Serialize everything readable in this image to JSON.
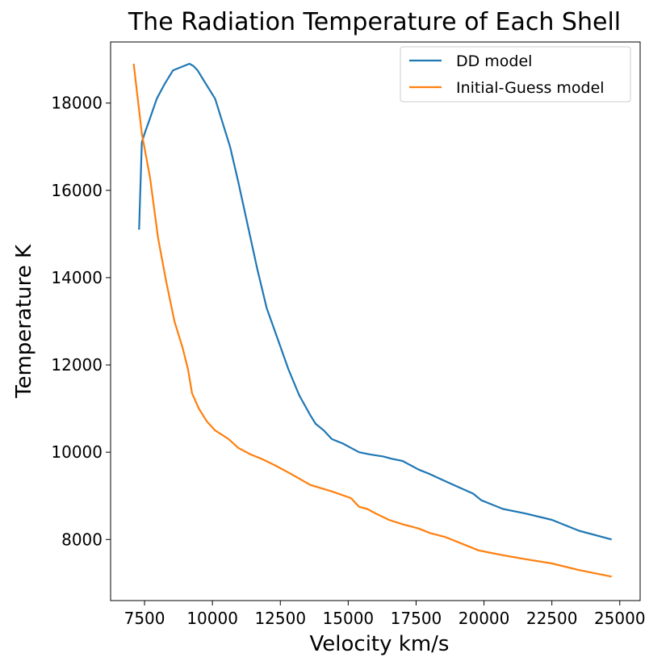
{
  "chart_data": {
    "type": "line",
    "title": "The Radiation Temperature of Each Shell",
    "xlabel": "Velocity km/s",
    "ylabel": "Temperature K",
    "xlim": [
      6250,
      25750
    ],
    "ylim": [
      6600,
      19400
    ],
    "xticks": [
      7500,
      10000,
      12500,
      15000,
      17500,
      20000,
      22500,
      25000
    ],
    "yticks": [
      8000,
      10000,
      12000,
      14000,
      16000,
      18000
    ],
    "grid": false,
    "legend_position": "top-right",
    "series": [
      {
        "name": "DD model",
        "color": "#1f77b4",
        "x": [
          7300,
          7400,
          7500,
          7700,
          7950,
          8250,
          8550,
          9150,
          9300,
          9450,
          9650,
          9850,
          10100,
          10350,
          10650,
          10950,
          11300,
          11650,
          12000,
          12400,
          12800,
          13200,
          13600,
          13800,
          14100,
          14400,
          14800,
          15100,
          15400,
          15800,
          16300,
          16600,
          17000,
          17300,
          17600,
          18000,
          18700,
          19600,
          19900,
          20300,
          20700,
          21500,
          22500,
          23500,
          24700
        ],
        "values": [
          15100,
          17100,
          17300,
          17650,
          18100,
          18450,
          18750,
          18900,
          18850,
          18750,
          18550,
          18350,
          18100,
          17600,
          17000,
          16200,
          15200,
          14200,
          13300,
          12600,
          11900,
          11300,
          10850,
          10650,
          10500,
          10300,
          10200,
          10100,
          10000,
          9950,
          9900,
          9850,
          9800,
          9700,
          9600,
          9500,
          9300,
          9050,
          8900,
          8800,
          8700,
          8600,
          8450,
          8200,
          8000
        ]
      },
      {
        "name": "Initial-Guess model",
        "color": "#ff7f0e",
        "x": [
          7100,
          7400,
          7700,
          8000,
          8300,
          8600,
          8900,
          9100,
          9250,
          9500,
          9800,
          10100,
          10350,
          10600,
          10950,
          11400,
          11800,
          12300,
          12900,
          13600,
          14400,
          15100,
          15400,
          15700,
          16000,
          16500,
          17000,
          17600,
          18000,
          18600,
          19200,
          19800,
          20200,
          20600,
          21500,
          22500,
          23500,
          24700
        ],
        "values": [
          18900,
          17300,
          16300,
          14900,
          13900,
          13000,
          12400,
          11900,
          11350,
          11000,
          10700,
          10500,
          10400,
          10300,
          10100,
          9950,
          9850,
          9700,
          9500,
          9250,
          9100,
          8950,
          8750,
          8700,
          8600,
          8450,
          8350,
          8250,
          8150,
          8050,
          7900,
          7750,
          7700,
          7650,
          7550,
          7450,
          7300,
          7150
        ]
      }
    ]
  }
}
